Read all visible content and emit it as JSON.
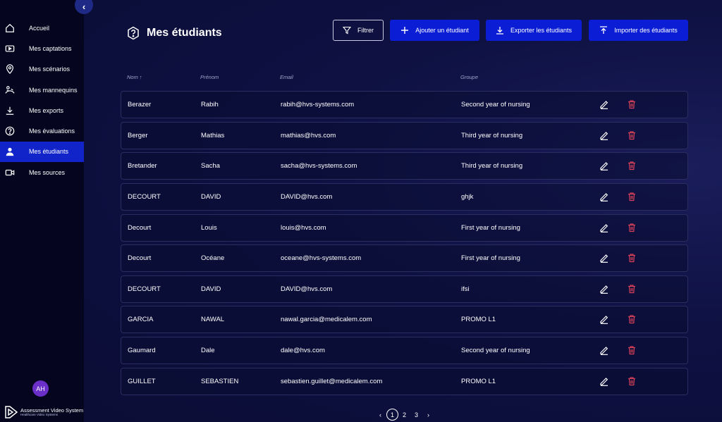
{
  "sidebar": {
    "items": [
      {
        "label": "Accueil",
        "icon": "home-icon"
      },
      {
        "label": "Mes captations",
        "icon": "video-icon"
      },
      {
        "label": "Mes scénarios",
        "icon": "location-pin-icon"
      },
      {
        "label": "Mes mannequins",
        "icon": "mannequin-icon"
      },
      {
        "label": "Mes exports",
        "icon": "download-icon"
      },
      {
        "label": "Mes évaluations",
        "icon": "question-icon"
      },
      {
        "label": "Mes étudiants",
        "icon": "user-icon",
        "active": true
      },
      {
        "label": "Mes sources",
        "icon": "camera-icon"
      }
    ],
    "avatar_initials": "AH",
    "logo_title": "Assessment Video System",
    "logo_subtitle": "Healthcare Video Systems"
  },
  "header": {
    "title": "Mes étudiants",
    "buttons": {
      "filter": "Filtrer",
      "add": "Ajouter un étudiant",
      "export": "Exporter les étudiants",
      "import": "Importer des étudiants"
    }
  },
  "table": {
    "columns": {
      "nom": "Nom ↑",
      "prenom": "Prénom",
      "email": "Email",
      "groupe": "Groupe"
    },
    "rows": [
      {
        "nom": "Berazer",
        "prenom": "Rabih",
        "email": "rabih@hvs-systems.com",
        "groupe": "Second year of nursing"
      },
      {
        "nom": "Berger",
        "prenom": "Mathias",
        "email": "mathias@hvs.com",
        "groupe": "Third year of nursing"
      },
      {
        "nom": "Bretander",
        "prenom": "Sacha",
        "email": "sacha@hvs-systems.com",
        "groupe": "Third year of nursing"
      },
      {
        "nom": "DECOURT",
        "prenom": "DAVID",
        "email": "DAVID@hvs.com",
        "groupe": "ghjk"
      },
      {
        "nom": "Decourt",
        "prenom": "Louis",
        "email": "louis@hvs.com",
        "groupe": "First year of nursing"
      },
      {
        "nom": "Decourt",
        "prenom": "Océane",
        "email": "oceane@hvs-systems.com",
        "groupe": "First year of nursing"
      },
      {
        "nom": "DECOURT",
        "prenom": "DAVID",
        "email": "DAVID@hvs.com",
        "groupe": "ifsi"
      },
      {
        "nom": "GARCIA",
        "prenom": "NAWAL",
        "email": "nawal.garcia@medicalem.com",
        "groupe": "PROMO L1"
      },
      {
        "nom": "Gaumard",
        "prenom": "Dale",
        "email": "dale@hvs.com",
        "groupe": "Second year of nursing"
      },
      {
        "nom": "GUILLET",
        "prenom": "SEBASTIEN",
        "email": "sebastien.guillet@medicalem.com",
        "groupe": "PROMO L1"
      }
    ]
  },
  "pagination": {
    "pages": [
      "1",
      "2",
      "3"
    ],
    "current": "1",
    "prev": "‹",
    "next": "›"
  },
  "colors": {
    "sidebar_bg": "#05051f",
    "active_nav": "#1024c9",
    "primary_button": "#0b1ed6",
    "delete_icon": "#d64058",
    "avatar": "#6a2fc9"
  }
}
